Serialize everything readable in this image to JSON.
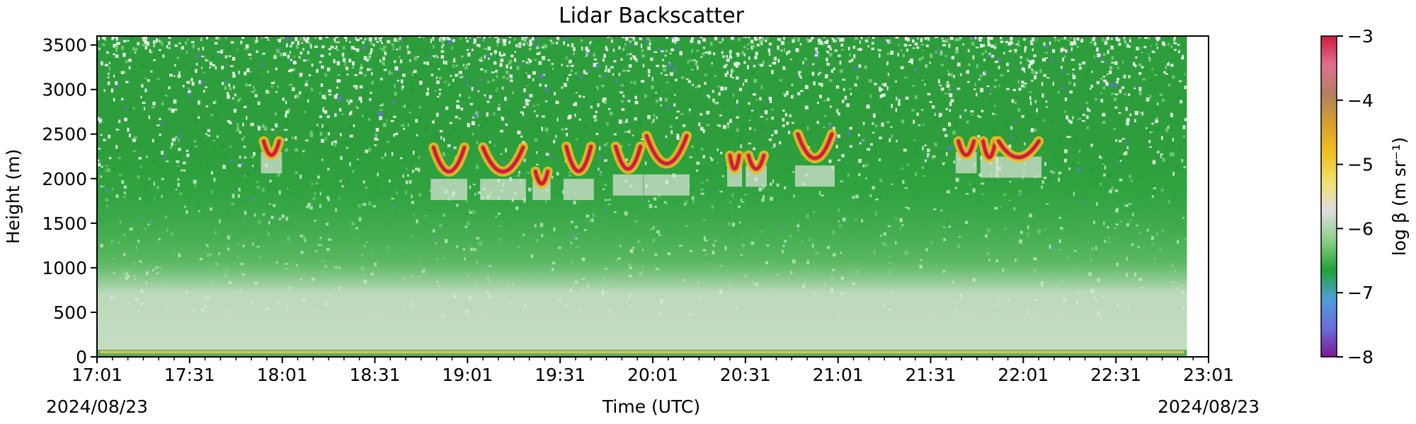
{
  "chart_data": {
    "type": "heatmap",
    "title": "Lidar Backscatter",
    "xlabel": "Time (UTC)",
    "ylabel": "Height (m)",
    "date_start": "2024/08/23",
    "date_end": "2024/08/23",
    "x_ticks": [
      "17:01",
      "17:31",
      "18:01",
      "18:31",
      "19:01",
      "19:31",
      "20:01",
      "20:31",
      "21:01",
      "21:31",
      "22:01",
      "22:31",
      "23:01"
    ],
    "xlim": [
      "17:01",
      "23:01"
    ],
    "data_end_time": "22:54",
    "y_ticks": [
      "0",
      "500",
      "1000",
      "1500",
      "2000",
      "2500",
      "3000",
      "3500"
    ],
    "ylim": [
      0,
      3600
    ],
    "colorbar": {
      "label": "log β (m sr⁻¹)",
      "ticks": [
        "−3",
        "−4",
        "−5",
        "−6",
        "−7",
        "−8"
      ],
      "range": [
        -8,
        -3
      ],
      "colors": [
        "#7b1a8e",
        "#6a6ee0",
        "#4f9fd6",
        "#21a336",
        "#8fcf8a",
        "#dddddd",
        "#f0e070",
        "#f0c020",
        "#d4a030",
        "#b08060",
        "#e07090",
        "#d01c3c"
      ]
    },
    "cloud_layers": [
      {
        "start": "17:55",
        "end": "18:00",
        "base_m": 2250,
        "top_m": 2420
      },
      {
        "start": "18:50",
        "end": "19:00",
        "base_m": 1950,
        "top_m": 2350
      },
      {
        "start": "19:06",
        "end": "19:19",
        "base_m": 1950,
        "top_m": 2350
      },
      {
        "start": "19:23",
        "end": "19:27",
        "base_m": 1950,
        "top_m": 2080
      },
      {
        "start": "19:33",
        "end": "19:41",
        "base_m": 1950,
        "top_m": 2360
      },
      {
        "start": "19:49",
        "end": "19:57",
        "base_m": 2000,
        "top_m": 2360
      },
      {
        "start": "19:59",
        "end": "20:12",
        "base_m": 2000,
        "top_m": 2480
      },
      {
        "start": "20:26",
        "end": "20:29",
        "base_m": 2100,
        "top_m": 2260
      },
      {
        "start": "20:32",
        "end": "20:37",
        "base_m": 2100,
        "top_m": 2260
      },
      {
        "start": "20:48",
        "end": "20:59",
        "base_m": 2100,
        "top_m": 2500
      },
      {
        "start": "21:40",
        "end": "21:45",
        "base_m": 2250,
        "top_m": 2420
      },
      {
        "start": "21:48",
        "end": "21:52",
        "base_m": 2200,
        "top_m": 2420
      },
      {
        "start": "21:53",
        "end": "22:06",
        "base_m": 2200,
        "top_m": 2420
      }
    ]
  }
}
